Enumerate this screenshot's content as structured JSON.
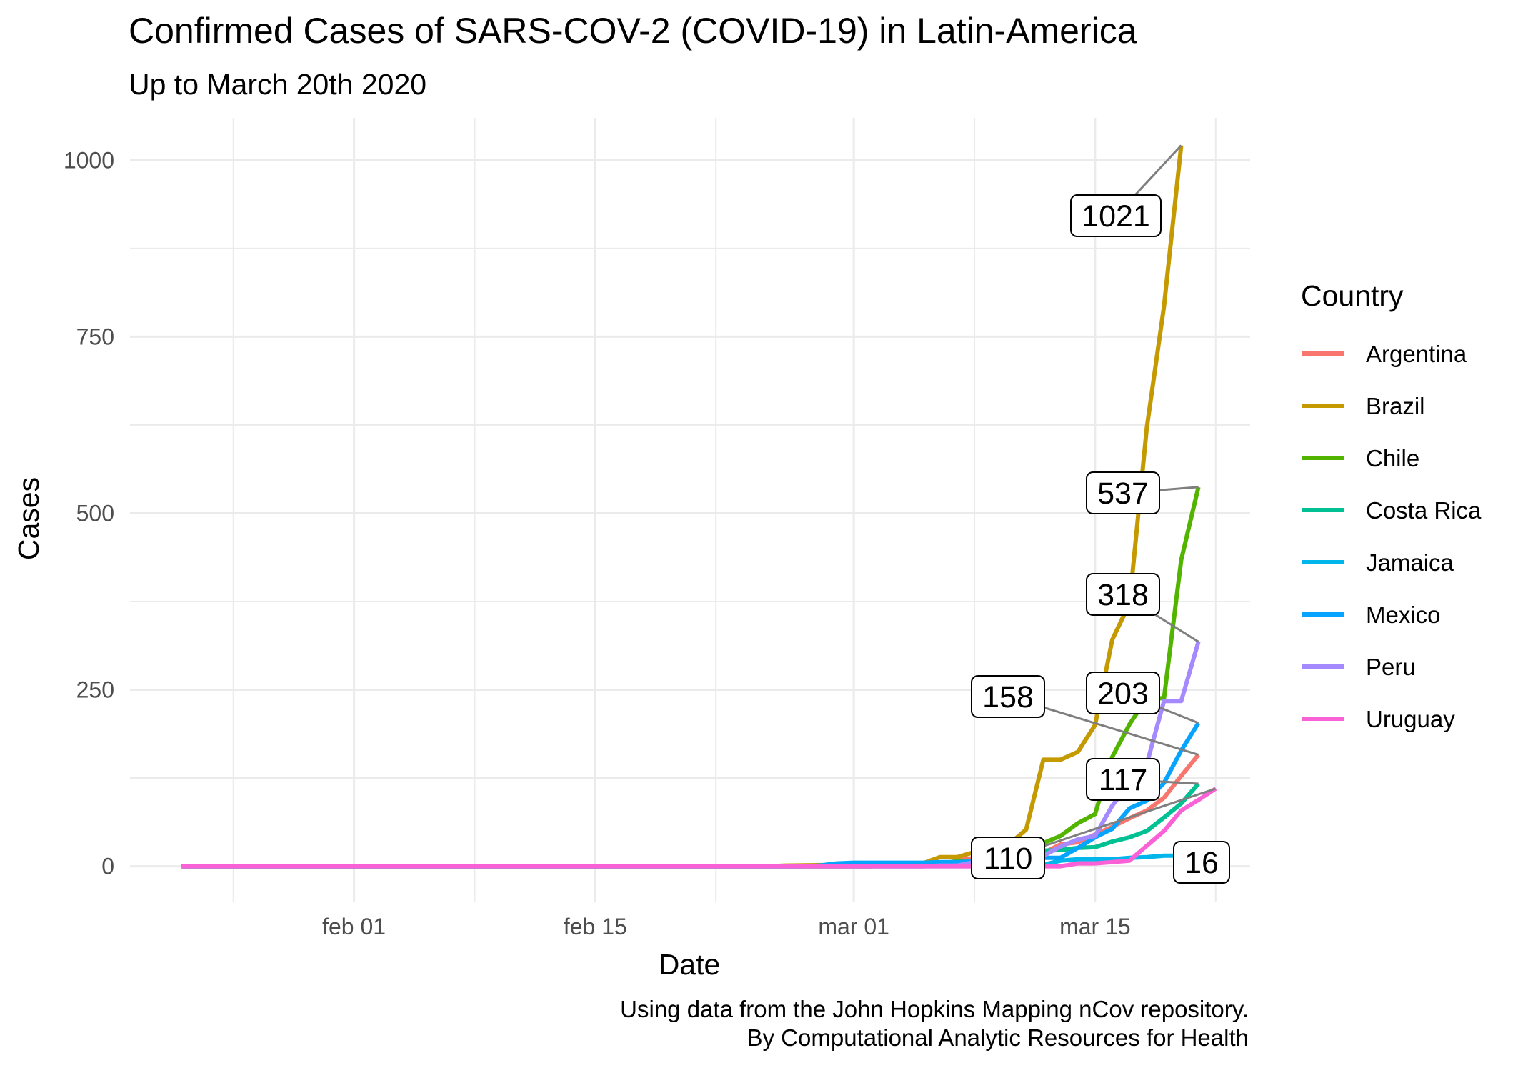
{
  "chart_data": {
    "type": "line",
    "title": "Confirmed Cases of SARS-COV-2 (COVID-19) in Latin-America",
    "subtitle": "Up to March 20th 2020",
    "xlabel": "Date",
    "ylabel": "Cases",
    "caption_lines": [
      "Using data from the John Hopkins Mapping nCov repository.",
      "By Computational Analytic Resources for Health"
    ],
    "legend_title": "Country",
    "legend_position": "right",
    "grid": true,
    "xlim": [
      "2020-01-19",
      "2020-03-24"
    ],
    "ylim": [
      -50,
      1060
    ],
    "x_ticks": [
      {
        "date": "2020-02-01",
        "label": "feb 01"
      },
      {
        "date": "2020-02-15",
        "label": "feb 15"
      },
      {
        "date": "2020-03-01",
        "label": "mar 01"
      },
      {
        "date": "2020-03-15",
        "label": "mar 15"
      }
    ],
    "y_ticks": [
      {
        "value": 0,
        "label": "0"
      },
      {
        "value": 250,
        "label": "250"
      },
      {
        "value": 500,
        "label": "500"
      },
      {
        "value": 750,
        "label": "750"
      },
      {
        "value": 1000,
        "label": "1000"
      }
    ],
    "series": [
      {
        "name": "Argentina",
        "color": "#F8766D",
        "points": [
          [
            "2020-01-22",
            0
          ],
          [
            "2020-03-02",
            0
          ],
          [
            "2020-03-03",
            1
          ],
          [
            "2020-03-05",
            1
          ],
          [
            "2020-03-06",
            2
          ],
          [
            "2020-03-07",
            8
          ],
          [
            "2020-03-08",
            12
          ],
          [
            "2020-03-09",
            12
          ],
          [
            "2020-03-10",
            17
          ],
          [
            "2020-03-11",
            19
          ],
          [
            "2020-03-12",
            19
          ],
          [
            "2020-03-13",
            31
          ],
          [
            "2020-03-14",
            34
          ],
          [
            "2020-03-15",
            45
          ],
          [
            "2020-03-16",
            56
          ],
          [
            "2020-03-17",
            68
          ],
          [
            "2020-03-18",
            79
          ],
          [
            "2020-03-19",
            97
          ],
          [
            "2020-03-20",
            128
          ],
          [
            "2020-03-21",
            158
          ]
        ]
      },
      {
        "name": "Brazil",
        "color": "#C49A00",
        "points": [
          [
            "2020-01-22",
            0
          ],
          [
            "2020-02-25",
            0
          ],
          [
            "2020-02-26",
            1
          ],
          [
            "2020-02-29",
            2
          ],
          [
            "2020-03-04",
            4
          ],
          [
            "2020-03-05",
            4
          ],
          [
            "2020-03-06",
            13
          ],
          [
            "2020-03-07",
            13
          ],
          [
            "2020-03-08",
            20
          ],
          [
            "2020-03-09",
            25
          ],
          [
            "2020-03-10",
            31
          ],
          [
            "2020-03-11",
            52
          ],
          [
            "2020-03-12",
            151
          ],
          [
            "2020-03-13",
            151
          ],
          [
            "2020-03-14",
            162
          ],
          [
            "2020-03-15",
            200
          ],
          [
            "2020-03-16",
            321
          ],
          [
            "2020-03-17",
            372
          ],
          [
            "2020-03-18",
            621
          ],
          [
            "2020-03-19",
            793
          ],
          [
            "2020-03-20",
            1021
          ]
        ]
      },
      {
        "name": "Chile",
        "color": "#53B400",
        "points": [
          [
            "2020-01-22",
            0
          ],
          [
            "2020-03-02",
            0
          ],
          [
            "2020-03-03",
            1
          ],
          [
            "2020-03-05",
            4
          ],
          [
            "2020-03-06",
            4
          ],
          [
            "2020-03-07",
            7
          ],
          [
            "2020-03-08",
            7
          ],
          [
            "2020-03-09",
            13
          ],
          [
            "2020-03-10",
            13
          ],
          [
            "2020-03-11",
            23
          ],
          [
            "2020-03-12",
            33
          ],
          [
            "2020-03-13",
            43
          ],
          [
            "2020-03-14",
            61
          ],
          [
            "2020-03-15",
            74
          ],
          [
            "2020-03-16",
            155
          ],
          [
            "2020-03-17",
            201
          ],
          [
            "2020-03-18",
            238
          ],
          [
            "2020-03-19",
            238
          ],
          [
            "2020-03-20",
            434
          ],
          [
            "2020-03-21",
            537
          ]
        ]
      },
      {
        "name": "Costa Rica",
        "color": "#00C094",
        "points": [
          [
            "2020-01-22",
            0
          ],
          [
            "2020-03-05",
            0
          ],
          [
            "2020-03-06",
            1
          ],
          [
            "2020-03-08",
            5
          ],
          [
            "2020-03-09",
            9
          ],
          [
            "2020-03-10",
            9
          ],
          [
            "2020-03-11",
            13
          ],
          [
            "2020-03-12",
            22
          ],
          [
            "2020-03-13",
            23
          ],
          [
            "2020-03-14",
            26
          ],
          [
            "2020-03-15",
            27
          ],
          [
            "2020-03-16",
            35
          ],
          [
            "2020-03-17",
            41
          ],
          [
            "2020-03-18",
            50
          ],
          [
            "2020-03-19",
            69
          ],
          [
            "2020-03-20",
            89
          ],
          [
            "2020-03-21",
            117
          ]
        ]
      },
      {
        "name": "Jamaica",
        "color": "#00B6EB",
        "points": [
          [
            "2020-01-22",
            0
          ],
          [
            "2020-03-09",
            0
          ],
          [
            "2020-03-10",
            1
          ],
          [
            "2020-03-11",
            2
          ],
          [
            "2020-03-12",
            2
          ],
          [
            "2020-03-13",
            8
          ],
          [
            "2020-03-14",
            10
          ],
          [
            "2020-03-15",
            10
          ],
          [
            "2020-03-16",
            10
          ],
          [
            "2020-03-17",
            12
          ],
          [
            "2020-03-18",
            13
          ],
          [
            "2020-03-19",
            15
          ],
          [
            "2020-03-20",
            15
          ],
          [
            "2020-03-21",
            16
          ]
        ]
      },
      {
        "name": "Mexico",
        "color": "#06A4FF",
        "points": [
          [
            "2020-01-22",
            0
          ],
          [
            "2020-02-27",
            0
          ],
          [
            "2020-02-28",
            1
          ],
          [
            "2020-02-29",
            4
          ],
          [
            "2020-03-01",
            5
          ],
          [
            "2020-03-05",
            5
          ],
          [
            "2020-03-06",
            6
          ],
          [
            "2020-03-07",
            6
          ],
          [
            "2020-03-08",
            7
          ],
          [
            "2020-03-09",
            7
          ],
          [
            "2020-03-10",
            7
          ],
          [
            "2020-03-11",
            8
          ],
          [
            "2020-03-12",
            12
          ],
          [
            "2020-03-13",
            12
          ],
          [
            "2020-03-14",
            26
          ],
          [
            "2020-03-15",
            41
          ],
          [
            "2020-03-16",
            53
          ],
          [
            "2020-03-17",
            82
          ],
          [
            "2020-03-18",
            93
          ],
          [
            "2020-03-19",
            118
          ],
          [
            "2020-03-20",
            164
          ],
          [
            "2020-03-21",
            203
          ]
        ]
      },
      {
        "name": "Peru",
        "color": "#A58AFF",
        "points": [
          [
            "2020-01-22",
            0
          ],
          [
            "2020-03-05",
            0
          ],
          [
            "2020-03-06",
            1
          ],
          [
            "2020-03-07",
            1
          ],
          [
            "2020-03-08",
            6
          ],
          [
            "2020-03-09",
            7
          ],
          [
            "2020-03-10",
            11
          ],
          [
            "2020-03-11",
            11
          ],
          [
            "2020-03-12",
            15
          ],
          [
            "2020-03-13",
            28
          ],
          [
            "2020-03-14",
            38
          ],
          [
            "2020-03-15",
            43
          ],
          [
            "2020-03-16",
            86
          ],
          [
            "2020-03-17",
            117
          ],
          [
            "2020-03-18",
            145
          ],
          [
            "2020-03-19",
            234
          ],
          [
            "2020-03-20",
            234
          ],
          [
            "2020-03-21",
            318
          ]
        ]
      },
      {
        "name": "Uruguay",
        "color": "#FB61D7",
        "points": [
          [
            "2020-01-22",
            0
          ],
          [
            "2020-03-13",
            0
          ],
          [
            "2020-03-14",
            4
          ],
          [
            "2020-03-15",
            4
          ],
          [
            "2020-03-16",
            6
          ],
          [
            "2020-03-17",
            8
          ],
          [
            "2020-03-18",
            29
          ],
          [
            "2020-03-19",
            50
          ],
          [
            "2020-03-20",
            79
          ],
          [
            "2020-03-21",
            94
          ],
          [
            "2020-03-22",
            110
          ]
        ]
      }
    ],
    "end_labels": [
      {
        "series": "Brazil",
        "text": "1021"
      },
      {
        "series": "Chile",
        "text": "537"
      },
      {
        "series": "Peru",
        "text": "318"
      },
      {
        "series": "Mexico",
        "text": "203"
      },
      {
        "series": "Argentina",
        "text": "158"
      },
      {
        "series": "Costa Rica",
        "text": "117"
      },
      {
        "series": "Uruguay",
        "text": "110"
      },
      {
        "series": "Jamaica",
        "text": "16"
      }
    ]
  }
}
